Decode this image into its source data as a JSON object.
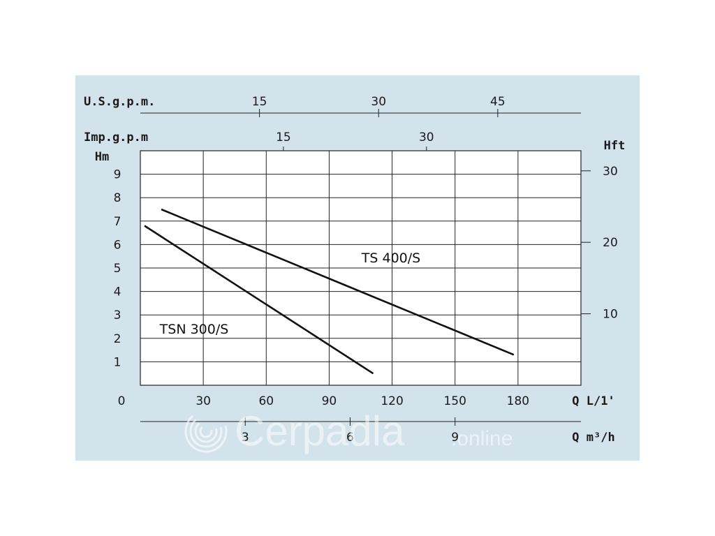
{
  "colors": {
    "panel_bg": "#d3e3eb",
    "plot_bg": "#ffffff",
    "grid": "#222222",
    "curve": "#111111",
    "watermark": "#ffffff"
  },
  "watermark": {
    "brand": "Cerpadla",
    "suffix": ".online",
    "icon": "swirl-logo-icon"
  },
  "chart_data": {
    "type": "line",
    "title": "",
    "x": {
      "label": "Q L/1'",
      "range": [
        0,
        210
      ],
      "ticks": [
        0,
        30,
        60,
        90,
        120,
        150,
        180
      ]
    },
    "y": {
      "label": "Hm",
      "range": [
        0,
        10
      ],
      "ticks": [
        1,
        2,
        3,
        4,
        5,
        6,
        7,
        8,
        9
      ]
    },
    "secondary_axes": {
      "us_gpm": {
        "label": "U.S.g.p.m.",
        "ticks": [
          15,
          30,
          45
        ]
      },
      "imp_gpm": {
        "label": "Imp.g.p.m",
        "ticks": [
          15,
          30
        ]
      },
      "m3h": {
        "label": "Q m³/h",
        "ticks": [
          3,
          6,
          9
        ]
      },
      "hft": {
        "label": "Hft",
        "ticks": [
          10,
          20,
          30
        ]
      }
    },
    "grid": true,
    "series": [
      {
        "name": "TS 400/S",
        "x": [
          10,
          178
        ],
        "y": [
          7.5,
          1.3
        ]
      },
      {
        "name": "TSN 300/S",
        "x": [
          2,
          111
        ],
        "y": [
          6.8,
          0.5
        ]
      }
    ]
  }
}
